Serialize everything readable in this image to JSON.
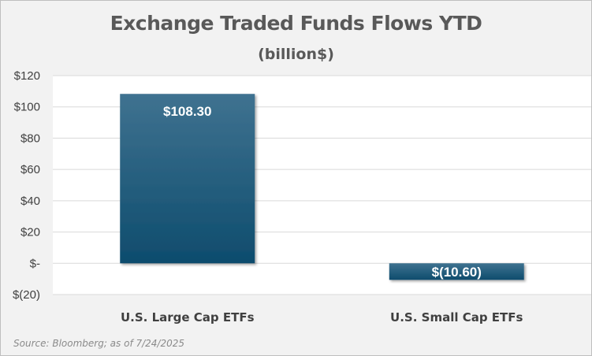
{
  "chart_data": {
    "type": "bar",
    "title": "Exchange Traded Funds Flows YTD",
    "subtitle": "(billion$)",
    "categories": [
      "U.S. Large Cap ETFs",
      "U.S. Small Cap ETFs"
    ],
    "values": [
      108.3,
      -10.6
    ],
    "data_labels": [
      "$108.30",
      "$(10.60)"
    ],
    "ylim": [
      -20,
      120
    ],
    "yticks": [
      -20,
      0,
      20,
      40,
      60,
      80,
      100,
      120
    ],
    "ytick_labels": [
      "$(20)",
      "$-",
      "$20",
      "$40",
      "$60",
      "$80",
      "$100",
      "$120"
    ],
    "grid": true,
    "bar_color_top": "#3f7290",
    "bar_color_bottom": "#0e4c6d",
    "source": "Source: Bloomberg; as of 7/24/2025"
  }
}
